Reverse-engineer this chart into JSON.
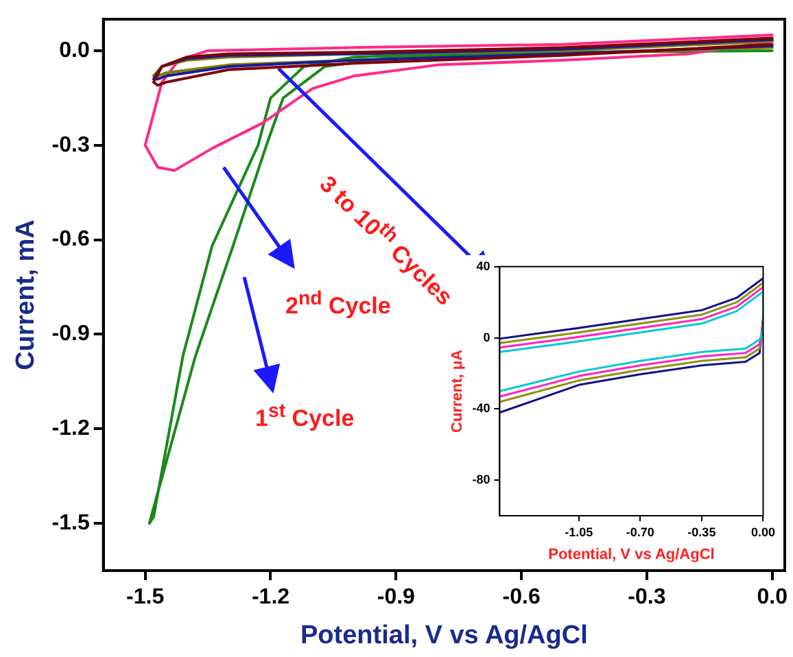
{
  "chart_data": [
    {
      "type": "line",
      "xlabel": "Potential, V vs Ag/AgCl",
      "ylabel": "Current, mA",
      "annotations": [
        "2$^{nd}$ Cycle",
        "1$^{st}$ Cycle",
        "3 to 10$^{th}$ Cycles"
      ],
      "xlim": [
        -1.6,
        0.03
      ],
      "ylim": [
        -1.65,
        0.1
      ],
      "xticks": [
        {
          "value": -1.5,
          "label": "-1.5"
        },
        {
          "value": -1.2,
          "label": "-1.2"
        },
        {
          "value": -0.9,
          "label": "-0.9"
        },
        {
          "value": -0.6,
          "label": "-0.6"
        },
        {
          "value": -0.3,
          "label": "-0.3"
        },
        {
          "value": 0,
          "label": "0.0"
        }
      ],
      "yticks": [
        {
          "value": 0,
          "label": "0.0"
        },
        {
          "value": -0.3,
          "label": "-0.3"
        },
        {
          "value": -0.6,
          "label": "-0.6"
        },
        {
          "value": -0.9,
          "label": "-0.9"
        },
        {
          "value": -1.2,
          "label": "-1.2"
        },
        {
          "value": -1.5,
          "label": "-1.5"
        }
      ],
      "grid": false,
      "legend": false,
      "marker": "none",
      "line_style": "solid",
      "series": [
        {
          "color": "#800000",
          "x": [
            0,
            -0.5,
            -1.0,
            -1.3,
            -1.4,
            -1.46,
            -1.48,
            -1.47,
            -1.45,
            -1.3,
            -1.0,
            -0.5,
            0
          ],
          "values": [
            0.04,
            0.01,
            -0.005,
            -0.01,
            -0.02,
            -0.05,
            -0.1,
            -0.11,
            -0.1,
            -0.06,
            -0.04,
            -0.015,
            0.02
          ]
        },
        {
          "color": "#1a1a9c",
          "x": [
            0,
            -0.5,
            -1.0,
            -1.3,
            -1.4,
            -1.46,
            -1.48,
            -1.47,
            -1.45,
            -1.3,
            -1.0,
            -0.5,
            0
          ],
          "values": [
            0.035,
            0.005,
            -0.01,
            -0.015,
            -0.025,
            -0.05,
            -0.09,
            -0.09,
            -0.08,
            -0.05,
            -0.03,
            -0.01,
            0.015
          ]
        },
        {
          "color": "#808000",
          "x": [
            0,
            -0.5,
            -1.0,
            -1.3,
            -1.4,
            -1.46,
            -1.48,
            -1.47,
            -1.45,
            -1.3,
            -1.0,
            -0.5,
            0
          ],
          "values": [
            0.03,
            0.0,
            -0.01,
            -0.02,
            -0.03,
            -0.05,
            -0.08,
            -0.08,
            -0.07,
            -0.045,
            -0.03,
            -0.01,
            0.01
          ]
        },
        {
          "color": "#ff2a8a",
          "x": [
            0,
            -0.5,
            -1.0,
            -1.35,
            -1.42,
            -1.46,
            -1.5,
            -1.47,
            -1.43,
            -1.34,
            -1.22,
            -1.1,
            -1.0,
            -0.8,
            -0.5,
            -0.2,
            0
          ],
          "values": [
            0.05,
            0.02,
            0.01,
            0.0,
            -0.03,
            -0.1,
            -0.3,
            -0.37,
            -0.38,
            -0.31,
            -0.23,
            -0.12,
            -0.08,
            -0.045,
            -0.03,
            -0.01,
            0.03
          ]
        },
        {
          "color": "#1a8a1a",
          "x": [
            0,
            -0.5,
            -0.9,
            -1.07,
            -1.17,
            -1.21,
            -1.29,
            -1.38,
            -1.49,
            -1.48,
            -1.41,
            -1.34,
            -1.23,
            -1.2,
            -1.12,
            -1.0,
            -0.6,
            0
          ],
          "values": [
            0.0,
            -0.005,
            -0.02,
            -0.05,
            -0.15,
            -0.3,
            -0.62,
            -0.97,
            -1.5,
            -1.48,
            -0.97,
            -0.62,
            -0.3,
            -0.15,
            -0.05,
            -0.02,
            0.0,
            0.03
          ]
        }
      ]
    },
    {
      "type": "line",
      "xlabel": "Potential, V vs Ag/AgCl",
      "ylabel": "Current, μA",
      "xlim": [
        -1.5,
        0
      ],
      "ylim": [
        -100,
        40
      ],
      "xticks": [
        {
          "value": -1.05,
          "label": "-1.05"
        },
        {
          "value": -0.7,
          "label": "-0.70"
        },
        {
          "value": -0.35,
          "label": "-0.35"
        },
        {
          "value": 0,
          "label": "0.00"
        }
      ],
      "yticks": [
        40,
        0,
        -40,
        -80
      ],
      "grid": false,
      "legend": false,
      "marker": "none",
      "line_style": "solid",
      "series": [
        {
          "color": "#00c8d8",
          "x": [
            -1.5,
            -1.05,
            -0.7,
            -0.35,
            -0.15,
            0,
            0,
            -0.02,
            -0.1,
            -0.35,
            -0.7,
            -1.05,
            -1.5
          ],
          "values": [
            -8,
            -2,
            3,
            8,
            15,
            26,
            4,
            -1,
            -6,
            -8,
            -13,
            -19,
            -30
          ]
        },
        {
          "color": "#ff20c0",
          "x": [
            -1.5,
            -1.05,
            -0.7,
            -0.35,
            -0.15,
            0,
            0,
            -0.02,
            -0.1,
            -0.35,
            -0.7,
            -1.05,
            -1.5
          ],
          "values": [
            -5.5,
            0.5,
            5.5,
            10.5,
            17.5,
            28.5,
            6.5,
            -3.5,
            -8.5,
            -10.5,
            -15.5,
            -21.5,
            -33
          ]
        },
        {
          "color": "#909010",
          "x": [
            -1.5,
            -1.05,
            -0.7,
            -0.35,
            -0.15,
            0,
            0,
            -0.02,
            -0.1,
            -0.35,
            -0.7,
            -1.05,
            -1.5
          ],
          "values": [
            -3,
            3,
            8,
            13,
            20,
            31,
            9,
            -6,
            -11,
            -13,
            -18,
            -24,
            -36
          ]
        },
        {
          "color": "#10108a",
          "x": [
            -1.5,
            -1.05,
            -0.7,
            -0.35,
            -0.15,
            0,
            0,
            -0.02,
            -0.1,
            -0.35,
            -0.7,
            -1.05,
            -1.5
          ],
          "values": [
            -0.5,
            5.5,
            10.5,
            15.5,
            22.5,
            33.5,
            11.5,
            -8.5,
            -13.5,
            -15.5,
            -20.5,
            -26.5,
            -42
          ]
        }
      ]
    }
  ]
}
